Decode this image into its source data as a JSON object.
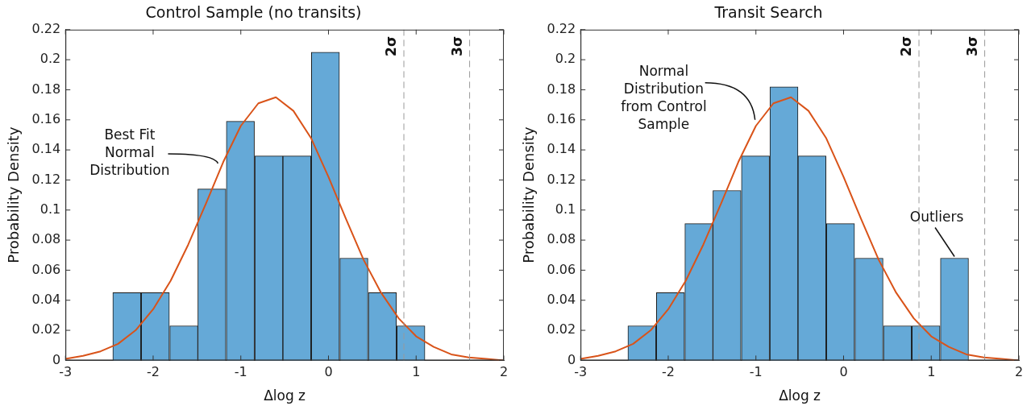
{
  "chart_data": [
    {
      "type": "histogram",
      "title": "Control Sample (no transits)",
      "xlabel": "Δlog z",
      "ylabel": "Probability Density",
      "bins": [
        -2.46,
        -2.14,
        -1.81,
        -1.49,
        -1.17,
        -0.84,
        -0.52,
        -0.2,
        0.13,
        0.45,
        0.78,
        1.1
      ],
      "series": [
        {
          "color": "#65a9d7",
          "values": [
            0.045,
            0.045,
            0.023,
            0.114,
            0.159,
            0.136,
            0.136,
            0.205,
            0.068,
            0.045,
            0.023
          ]
        },
        {
          "type": "line",
          "color": "#d95319",
          "x": [
            -3,
            -2.8,
            -2.6,
            -2.4,
            -2.2,
            -2,
            -1.8,
            -1.6,
            -1.4,
            -1.2,
            -1,
            -0.8,
            -0.6,
            -0.4,
            -0.2,
            0,
            0.2,
            0.4,
            0.6,
            0.8,
            1,
            1.2,
            1.4,
            1.6,
            1.8,
            2
          ],
          "values": [
            0.001,
            0.003,
            0.006,
            0.011,
            0.02,
            0.034,
            0.053,
            0.077,
            0.104,
            0.132,
            0.156,
            0.171,
            0.175,
            0.166,
            0.148,
            0.122,
            0.094,
            0.067,
            0.045,
            0.028,
            0.016,
            0.009,
            0.004,
            0.002,
            0.001,
            0
          ]
        }
      ],
      "xlim": [
        -3,
        2
      ],
      "xticks": [
        -3,
        -2,
        -1,
        0,
        1,
        2
      ],
      "ylim": [
        0,
        0.22
      ],
      "yticks": [
        0,
        0.02,
        0.04,
        0.06,
        0.08,
        0.1,
        0.12,
        0.14,
        0.16,
        0.18,
        0.2,
        0.22
      ],
      "ref_lines": [
        {
          "axis": "x",
          "value": 0.86,
          "label": "2σ",
          "color": "#999999",
          "line_style": "dashed"
        },
        {
          "axis": "x",
          "value": 1.61,
          "label": "3σ",
          "color": "#999999",
          "line_style": "dashed"
        }
      ],
      "annotations": [
        {
          "text": "Best Fit\nNormal\nDistribution",
          "x": -1.26,
          "y": 0.131
        }
      ],
      "grid": false,
      "legend": false
    },
    {
      "type": "histogram",
      "title": "Transit Search",
      "xlabel": "Δlog z",
      "ylabel": "Probability Density",
      "bins": [
        -2.46,
        -2.14,
        -1.81,
        -1.49,
        -1.17,
        -0.84,
        -0.52,
        -0.2,
        0.13,
        0.45,
        0.78,
        1.1,
        1.43
      ],
      "series": [
        {
          "color": "#65a9d7",
          "values": [
            0.023,
            0.045,
            0.091,
            0.113,
            0.136,
            0.182,
            0.136,
            0.091,
            0.068,
            0.023,
            0.023,
            0.068
          ]
        },
        {
          "type": "line",
          "color": "#d95319",
          "x": [
            -3,
            -2.8,
            -2.6,
            -2.4,
            -2.2,
            -2,
            -1.8,
            -1.6,
            -1.4,
            -1.2,
            -1,
            -0.8,
            -0.6,
            -0.4,
            -0.2,
            0,
            0.2,
            0.4,
            0.6,
            0.8,
            1,
            1.2,
            1.4,
            1.6,
            1.8,
            2
          ],
          "values": [
            0.001,
            0.003,
            0.006,
            0.011,
            0.02,
            0.034,
            0.053,
            0.077,
            0.104,
            0.132,
            0.156,
            0.171,
            0.175,
            0.166,
            0.148,
            0.122,
            0.094,
            0.067,
            0.045,
            0.028,
            0.016,
            0.009,
            0.004,
            0.002,
            0.001,
            0
          ]
        }
      ],
      "xlim": [
        -3,
        2
      ],
      "xticks": [
        -3,
        -2,
        -1,
        0,
        1,
        2
      ],
      "ylim": [
        0,
        0.22
      ],
      "yticks": [
        0,
        0.02,
        0.04,
        0.06,
        0.08,
        0.1,
        0.12,
        0.14,
        0.16,
        0.18,
        0.2,
        0.22
      ],
      "ref_lines": [
        {
          "axis": "x",
          "value": 0.86,
          "label": "2σ",
          "color": "#999999",
          "line_style": "dashed"
        },
        {
          "axis": "x",
          "value": 1.61,
          "label": "3σ",
          "color": "#999999",
          "line_style": "dashed"
        }
      ],
      "annotations": [
        {
          "text": "Normal\nDistribution\nfrom Control\nSample",
          "x": -1.01,
          "y": 0.16
        },
        {
          "text": "Outliers",
          "x": 1.265,
          "y": 0.068
        }
      ],
      "grid": false,
      "legend": false
    }
  ]
}
